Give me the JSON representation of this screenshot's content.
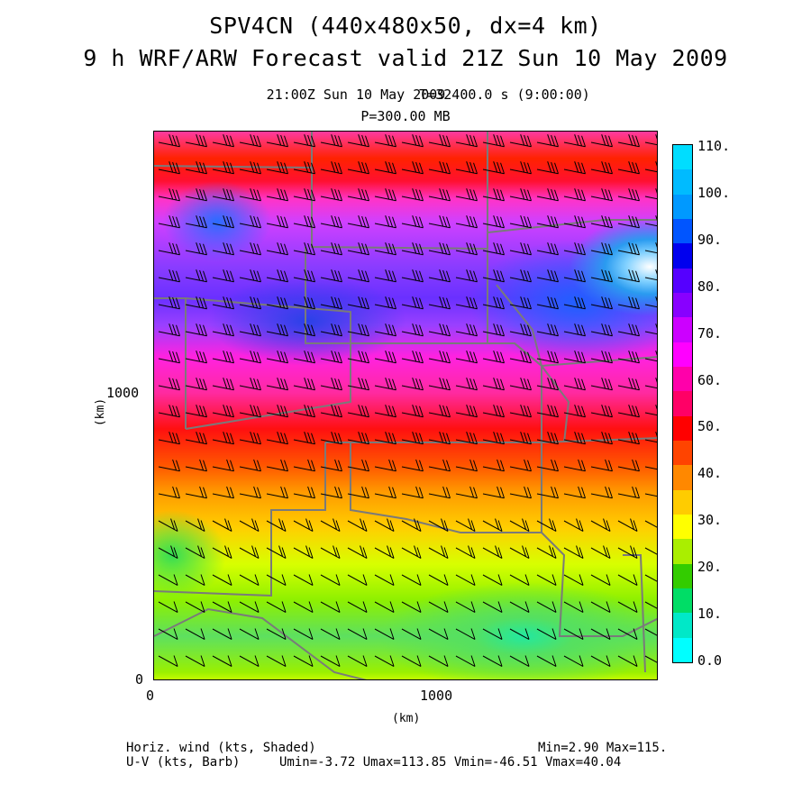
{
  "title_line1": "SPV4CN (440x480x50, dx=4 km)",
  "title_line2": "9 h WRF/ARW Forecast valid 21Z Sun 10 May 2009",
  "subtitle_time": "21:00Z Sun 10 May 2009",
  "subtitle_t": "T=32400.0 s (9:00:00)",
  "subtitle_level": "P=300.00 MB",
  "chart_data": {
    "type": "heatmap",
    "field": "Horiz. wind (kts, Shaded)",
    "overlay": "U-V (kts, Barb)",
    "xlabel": "(km)",
    "ylabel": "(km)",
    "x_ticks": [
      "0",
      "1000"
    ],
    "y_ticks": [
      "0",
      "1000"
    ],
    "colorbar": {
      "labels": [
        "0.0",
        "10.",
        "20.",
        "30.",
        "40.",
        "50.",
        "60.",
        "70.",
        "80.",
        "90.",
        "100.",
        "110."
      ],
      "colors": [
        "#00ffff",
        "#00e8c8",
        "#00dd66",
        "#33cc00",
        "#aaee00",
        "#ffff00",
        "#ffcc00",
        "#ff8800",
        "#ff4400",
        "#ff0000",
        "#ff0066",
        "#ff00aa",
        "#ff00ff",
        "#cc00ff",
        "#8800ff",
        "#5500ff",
        "#0000ee",
        "#0055ff",
        "#0099ff",
        "#00bbff",
        "#00ddff"
      ]
    },
    "stats": {
      "min": "Min=2.90",
      "max": "Max=115.",
      "umin": "Umin=-3.72",
      "umax": "Umax=113.85",
      "vmin": "Vmin=-46.51",
      "vmax": "Vmax=40.04"
    }
  },
  "footer": {
    "left1": "Horiz. wind (kts, Shaded)",
    "left2": "U-V (kts, Barb)",
    "right1": "Min=2.90 Max=115.",
    "right2": "Umin=-3.72 Umax=113.85 Vmin=-46.51 Vmax=40.04"
  }
}
